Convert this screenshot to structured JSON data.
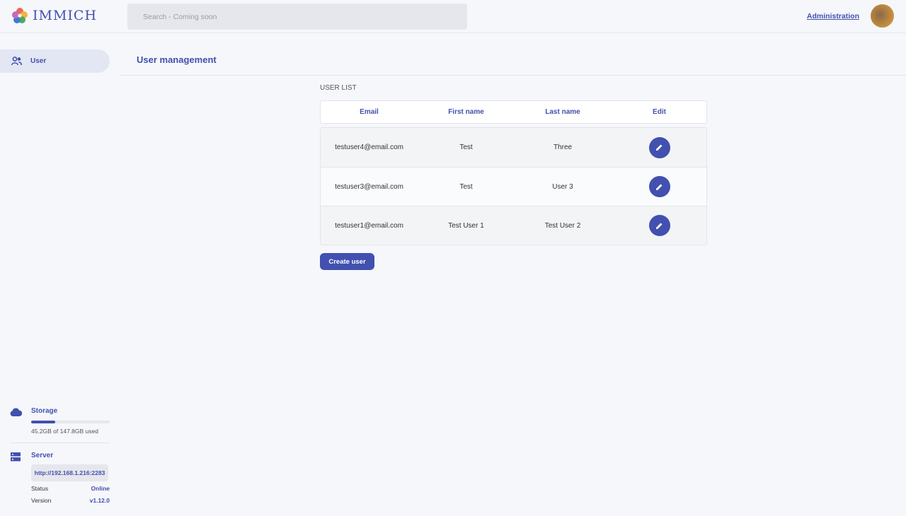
{
  "header": {
    "app_name": "IMMICH",
    "search_placeholder": "Search - Coming soon",
    "admin_link": "Administration"
  },
  "sidebar": {
    "items": [
      {
        "label": "User",
        "icon": "users-icon"
      }
    ]
  },
  "main": {
    "title": "User management",
    "list_label": "USER LIST",
    "columns": [
      "Email",
      "First name",
      "Last name",
      "Edit"
    ],
    "rows": [
      {
        "email": "testuser4@email.com",
        "first": "Test",
        "last": "Three"
      },
      {
        "email": "testuser3@email.com",
        "first": "Test",
        "last": "User 3"
      },
      {
        "email": "testuser1@email.com",
        "first": "Test User 1",
        "last": "Test User 2"
      }
    ],
    "create_label": "Create user"
  },
  "storage": {
    "title": "Storage",
    "usage": "45.2GB of 147.8GB used",
    "used_fraction": 0.306
  },
  "server": {
    "title": "Server",
    "url": "http://192.168.1.216:2283",
    "status_label": "Status",
    "status": "Online",
    "version_label": "Version",
    "version": "v1.12.0"
  },
  "colors": {
    "accent": "#4250af"
  }
}
